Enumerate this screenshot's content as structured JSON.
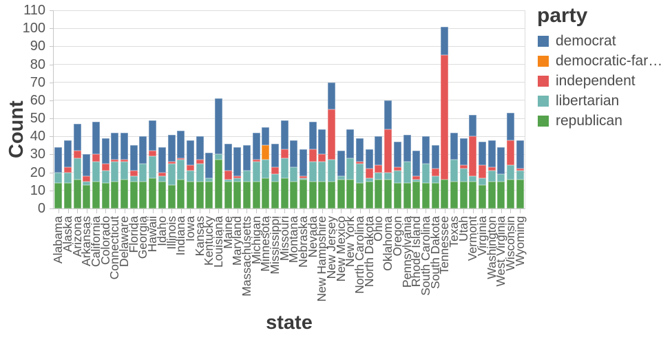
{
  "chart_data": {
    "type": "bar",
    "stacked": true,
    "xlabel": "state",
    "ylabel": "Count",
    "legend_title": "party",
    "legend_position": "top-right",
    "grid": true,
    "ylim": [
      0,
      110
    ],
    "y_ticks": [
      0,
      10,
      20,
      30,
      40,
      50,
      60,
      70,
      80,
      90,
      100,
      110
    ],
    "categories": [
      "Alabama",
      "Alaska",
      "Arizona",
      "Arkansas",
      "California",
      "Colorado",
      "Connecticut",
      "Delaware",
      "Florida",
      "Georgia",
      "Hawaii",
      "Idaho",
      "Illinois",
      "Indiana",
      "Iowa",
      "Kansas",
      "Kentucky",
      "Louisiana",
      "Maine",
      "Maryland",
      "Massachusetts",
      "Michigan",
      "Minnesota",
      "Mississippi",
      "Missouri",
      "Montana",
      "Nebraska",
      "Nevada",
      "New Hampshire",
      "New Jersey",
      "New Mexico",
      "New York",
      "North Carolina",
      "North Dakota",
      "Ohio",
      "Oklahoma",
      "Oregon",
      "Pennsylvania",
      "Rhode Island",
      "South Carolina",
      "South Dakota",
      "Tennessee",
      "Texas",
      "Utah",
      "Vermont",
      "Virginia",
      "Washington",
      "West Virginia",
      "Wisconsin",
      "Wyoming"
    ],
    "series": [
      {
        "name": "democrat",
        "color": "#4c78a8",
        "values": [
          14,
          15,
          15,
          12,
          18,
          14,
          15,
          15,
          14,
          15,
          17,
          14,
          15,
          15,
          14,
          13,
          14,
          31,
          15,
          16,
          14,
          15,
          10,
          13,
          16,
          15,
          15,
          15,
          14,
          15,
          14,
          16,
          13,
          11,
          16,
          16,
          14,
          15,
          14,
          15,
          13,
          16,
          15,
          15,
          12,
          13,
          15,
          15,
          15,
          16
        ]
      },
      {
        "name": "democratic-far…",
        "color": "#f58518",
        "values": [
          0,
          0,
          0,
          0,
          0,
          0,
          0,
          0,
          0,
          0,
          0,
          0,
          0,
          0,
          0,
          0,
          0,
          0,
          0,
          0,
          0,
          0,
          8,
          0,
          0,
          0,
          0,
          0,
          0,
          0,
          0,
          0,
          0,
          0,
          0,
          0,
          0,
          0,
          0,
          0,
          0,
          0,
          0,
          0,
          0,
          0,
          0,
          0,
          0,
          0
        ]
      },
      {
        "name": "independent",
        "color": "#e45756",
        "values": [
          0,
          3,
          4,
          3,
          4,
          4,
          1,
          1,
          3,
          0,
          3,
          2,
          1,
          1,
          3,
          2,
          0,
          0,
          5,
          1,
          0,
          1,
          0,
          4,
          5,
          0,
          1,
          7,
          4,
          28,
          0,
          0,
          1,
          5,
          4,
          24,
          2,
          0,
          2,
          0,
          4,
          69,
          0,
          2,
          22,
          7,
          2,
          0,
          14,
          1
        ]
      },
      {
        "name": "libertarian",
        "color": "#72b7b2",
        "values": [
          6,
          6,
          12,
          2,
          11,
          7,
          11,
          10,
          3,
          10,
          12,
          3,
          12,
          11,
          6,
          10,
          2,
          3,
          1,
          2,
          6,
          11,
          10,
          4,
          11,
          8,
          1,
          11,
          11,
          12,
          2,
          12,
          11,
          2,
          4,
          4,
          7,
          12,
          1,
          11,
          4,
          0,
          12,
          7,
          3,
          4,
          6,
          4,
          8,
          5
        ]
      },
      {
        "name": "republican",
        "color": "#54a24b",
        "values": [
          14,
          14,
          16,
          13,
          15,
          14,
          15,
          16,
          15,
          15,
          17,
          15,
          13,
          16,
          15,
          15,
          15,
          27,
          15,
          15,
          15,
          15,
          17,
          15,
          17,
          15,
          16,
          15,
          15,
          15,
          16,
          16,
          14,
          15,
          16,
          16,
          14,
          14,
          15,
          14,
          14,
          16,
          15,
          15,
          15,
          13,
          15,
          15,
          16,
          16
        ]
      }
    ],
    "stack_order": "bottom-to-top is reverse of series order (republican at bottom, democrat on top)"
  }
}
